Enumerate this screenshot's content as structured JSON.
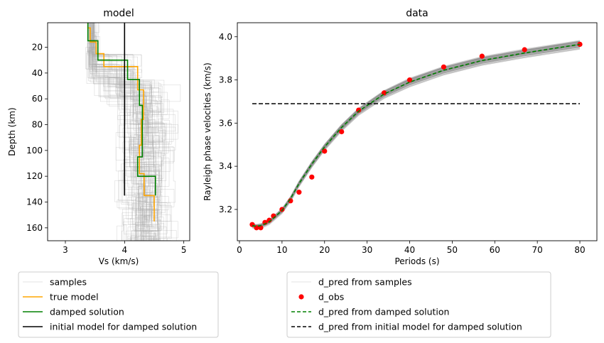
{
  "chart_data": [
    {
      "type": "line",
      "title": "model",
      "xlabel": "Vs (km/s)",
      "ylabel": "Depth (km)",
      "xlim": [
        2.7,
        5.1
      ],
      "ylim": [
        170,
        1
      ],
      "xticks": [
        3,
        4,
        5
      ],
      "yticks": [
        20,
        40,
        60,
        80,
        100,
        120,
        140,
        160
      ],
      "series": [
        {
          "name": "true model",
          "color": "#ffa500",
          "steps": [
            {
              "vs": 3.38,
              "z0": 1,
              "z1": 5
            },
            {
              "vs": 3.42,
              "z0": 5,
              "z1": 16
            },
            {
              "vs": 3.52,
              "z0": 16,
              "z1": 25
            },
            {
              "vs": 3.65,
              "z0": 25,
              "z1": 35
            },
            {
              "vs": 4.22,
              "z0": 35,
              "z1": 53
            },
            {
              "vs": 4.32,
              "z0": 53,
              "z1": 76
            },
            {
              "vs": 4.28,
              "z0": 76,
              "z1": 96
            },
            {
              "vs": 4.25,
              "z0": 96,
              "z1": 118
            },
            {
              "vs": 4.33,
              "z0": 118,
              "z1": 135
            },
            {
              "vs": 4.5,
              "z0": 135,
              "z1": 155
            }
          ]
        },
        {
          "name": "damped solution",
          "color": "#008000",
          "steps": [
            {
              "vs": 3.38,
              "z0": 1,
              "z1": 15
            },
            {
              "vs": 3.55,
              "z0": 15,
              "z1": 30
            },
            {
              "vs": 4.05,
              "z0": 30,
              "z1": 45
            },
            {
              "vs": 4.25,
              "z0": 45,
              "z1": 65
            },
            {
              "vs": 4.3,
              "z0": 65,
              "z1": 105
            },
            {
              "vs": 4.22,
              "z0": 105,
              "z1": 120
            },
            {
              "vs": 4.52,
              "z0": 120,
              "z1": 135
            }
          ]
        },
        {
          "name": "initial model for damped solution",
          "color": "#000000",
          "steps": [
            {
              "vs": 4.0,
              "z0": 1,
              "z1": 135
            }
          ]
        }
      ],
      "legend": [
        {
          "label": "samples",
          "color": "#c8c8c8",
          "style": "line"
        },
        {
          "label": "true model",
          "color": "#ffa500",
          "style": "line"
        },
        {
          "label": "damped solution",
          "color": "#008000",
          "style": "line"
        },
        {
          "label": "initial model for damped solution",
          "color": "#000000",
          "style": "line"
        }
      ]
    },
    {
      "type": "line",
      "title": "data",
      "xlabel": "Periods (s)",
      "ylabel": "Rayleigh phase velocities (km/s)",
      "xlim": [
        -0.5,
        84
      ],
      "ylim": [
        3.055,
        4.065
      ],
      "xticks": [
        0,
        10,
        20,
        30,
        40,
        50,
        60,
        70,
        80
      ],
      "yticks": [
        3.2,
        3.4,
        3.6,
        3.8,
        4.0
      ],
      "x": [
        3,
        4,
        5,
        6,
        7,
        8,
        10,
        12,
        14,
        17,
        20,
        24,
        28,
        34,
        40,
        48,
        57,
        67,
        80
      ],
      "series": [
        {
          "name": "d_obs",
          "color": "#ff0000",
          "values": [
            3.13,
            3.115,
            3.115,
            3.14,
            3.15,
            3.17,
            3.2,
            3.24,
            3.28,
            3.35,
            3.47,
            3.56,
            3.66,
            3.74,
            3.8,
            3.86,
            3.91,
            3.94,
            3.965
          ]
        },
        {
          "name": "d_pred from damped solution",
          "color": "#008000",
          "values": [
            3.125,
            3.122,
            3.125,
            3.133,
            3.143,
            3.16,
            3.195,
            3.25,
            3.32,
            3.41,
            3.49,
            3.58,
            3.655,
            3.735,
            3.79,
            3.845,
            3.89,
            3.925,
            3.965
          ]
        },
        {
          "name": "d_pred from initial model for damped solution",
          "color": "#000000",
          "values": [
            3.69,
            3.69,
            3.69,
            3.69,
            3.69,
            3.69,
            3.69,
            3.69,
            3.69,
            3.69,
            3.69,
            3.69,
            3.69,
            3.69,
            3.69,
            3.69,
            3.69,
            3.69,
            3.69
          ]
        }
      ],
      "legend": [
        {
          "label": "d_pred from samples",
          "color": "#c8c8c8",
          "style": "line"
        },
        {
          "label": "d_obs",
          "color": "#ff0000",
          "style": "marker"
        },
        {
          "label": "d_pred from damped solution",
          "color": "#008000",
          "style": "dashed"
        },
        {
          "label": "d_pred from initial model for damped solution",
          "color": "#000000",
          "style": "dashed"
        }
      ]
    }
  ]
}
